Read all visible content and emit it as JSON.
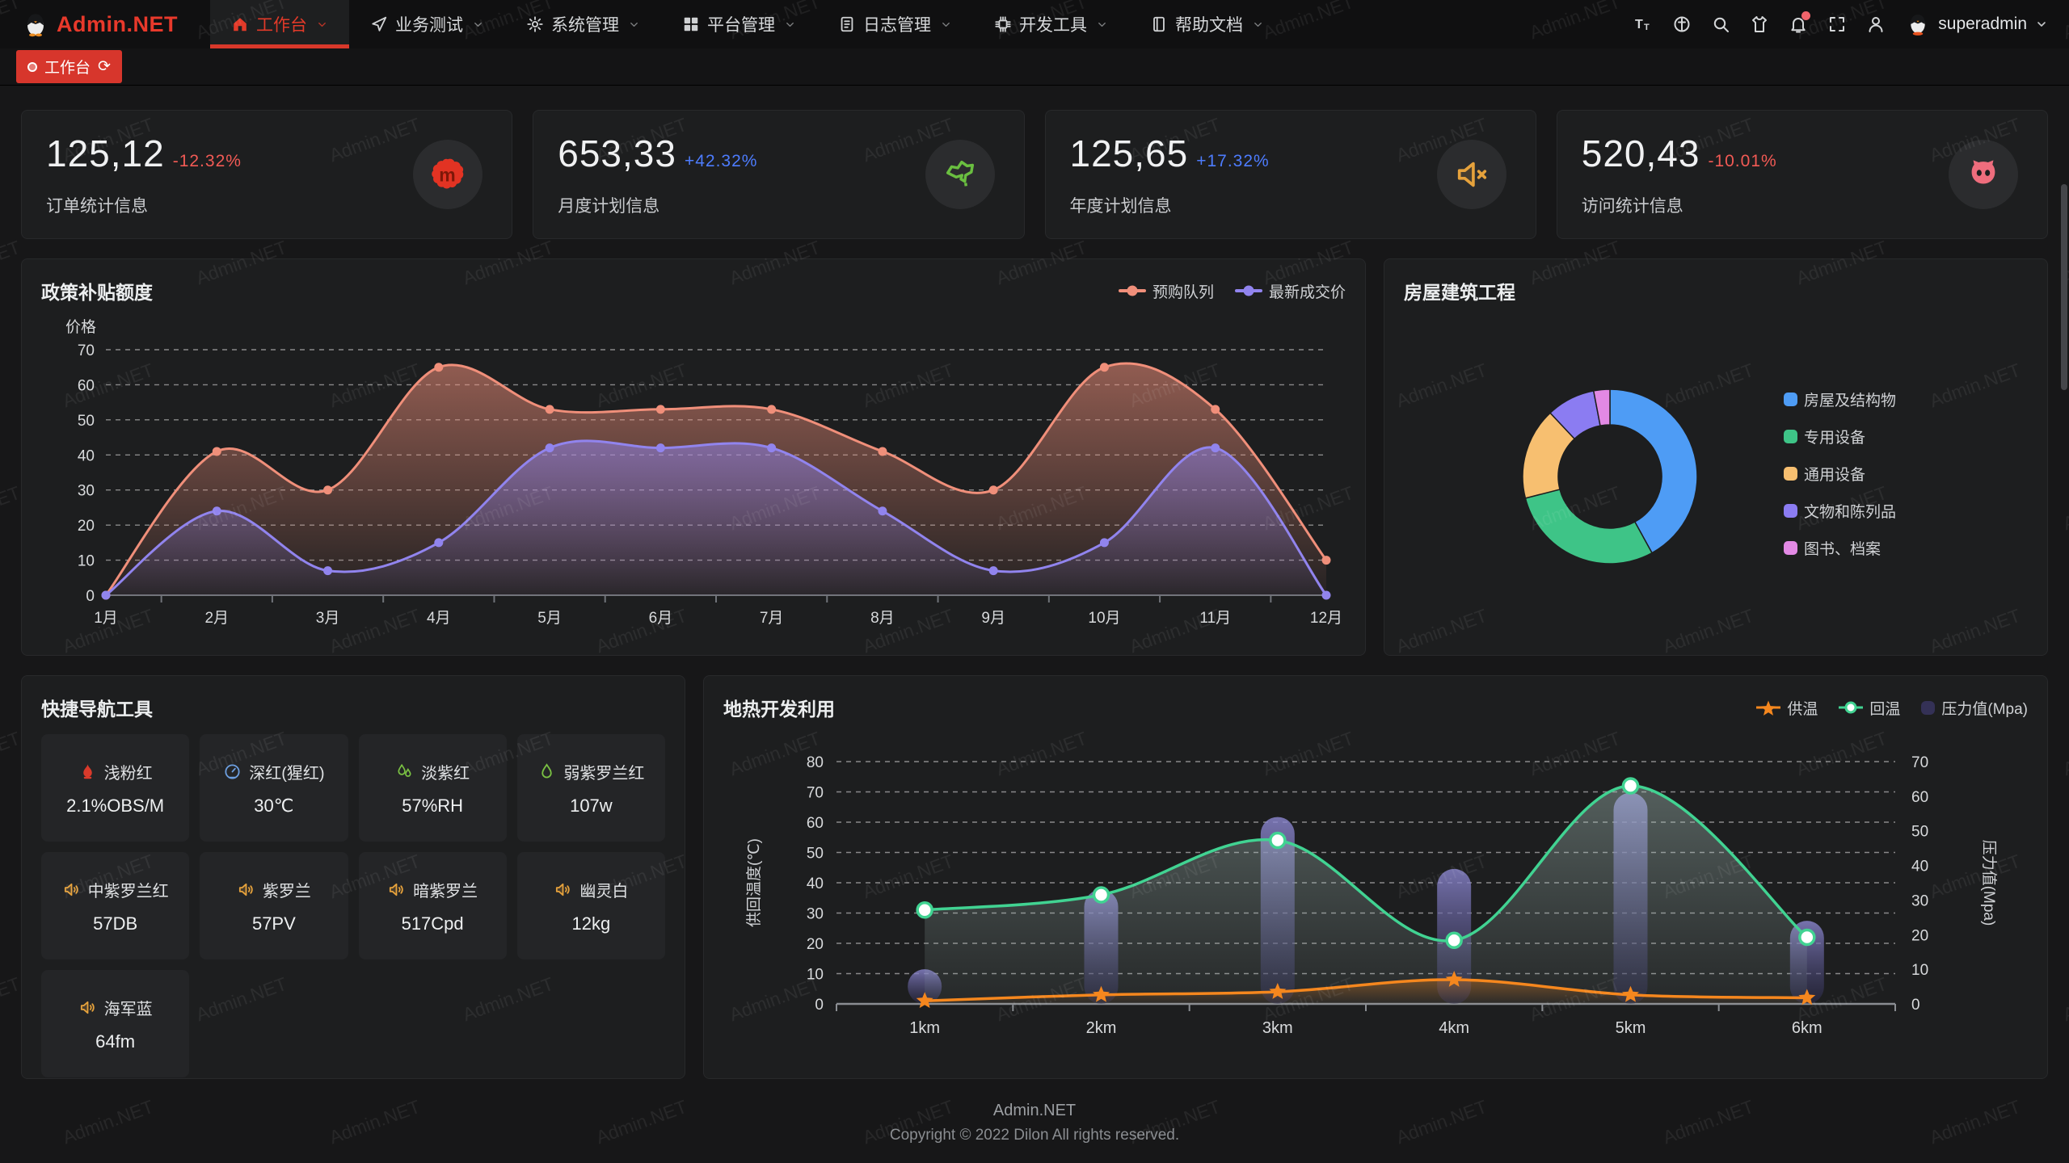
{
  "brand": {
    "name": "Admin.NET"
  },
  "watermark": {
    "text": "Admin.NET"
  },
  "navbar": {
    "menu": [
      {
        "label": "工作台",
        "icon": "home-icon",
        "active": true
      },
      {
        "label": "业务测试",
        "icon": "send-icon",
        "active": false
      },
      {
        "label": "系统管理",
        "icon": "gear-icon",
        "active": false
      },
      {
        "label": "平台管理",
        "icon": "grid-icon",
        "active": false
      },
      {
        "label": "日志管理",
        "icon": "file-icon",
        "active": false
      },
      {
        "label": "开发工具",
        "icon": "chip-icon",
        "active": false
      },
      {
        "label": "帮助文档",
        "icon": "book-icon",
        "active": false
      }
    ],
    "tools": [
      {
        "name": "font-size-button",
        "icon": "font-size-icon"
      },
      {
        "name": "language-button",
        "icon": "language-icon"
      },
      {
        "name": "search-button",
        "icon": "search-icon"
      },
      {
        "name": "theme-button",
        "icon": "theme-icon"
      },
      {
        "name": "notification-button",
        "icon": "notification-icon",
        "badge": true
      },
      {
        "name": "fullscreen-button",
        "icon": "fullscreen-icon"
      },
      {
        "name": "profile-button",
        "icon": "user-icon"
      }
    ],
    "user": {
      "name": "superadmin"
    }
  },
  "tabbar": {
    "active_tab": "工作台"
  },
  "stat_cards": [
    {
      "value": "125,12",
      "delta": "-12.32%",
      "delta_color": "#f25a55",
      "label": "订单统计信息",
      "icon": "meetup-splat-icon",
      "icon_color": "#e23323"
    },
    {
      "value": "653,33",
      "delta": "+42.32%",
      "delta_color": "#4d7cfe",
      "label": "月度计划信息",
      "icon": "china-map-icon",
      "icon_color": "#6abf40"
    },
    {
      "value": "125,65",
      "delta": "+17.32%",
      "delta_color": "#4d7cfe",
      "label": "年度计划信息",
      "icon": "speaker-mute-icon",
      "icon_color": "#e6a23c"
    },
    {
      "value": "520,43",
      "delta": "-10.01%",
      "delta_color": "#f25a55",
      "label": "访问统计信息",
      "icon": "cat-icon",
      "icon_color": "#ee6d7d"
    }
  ],
  "chart_data": [
    {
      "type": "line",
      "title": "政策补贴额度",
      "ylabel": "价格",
      "ylim": [
        0,
        70
      ],
      "ytick": 10,
      "grid": "dashed",
      "legend_position": "top-right",
      "categories": [
        "1月",
        "2月",
        "3月",
        "4月",
        "5月",
        "6月",
        "7月",
        "8月",
        "9月",
        "10月",
        "11月",
        "12月"
      ],
      "series": [
        {
          "name": "预购队列",
          "color": "#f08f7a",
          "values": [
            0,
            41,
            30,
            65,
            53,
            53,
            53,
            41,
            30,
            65,
            53,
            10
          ]
        },
        {
          "name": "最新成交价",
          "color": "#9184ee",
          "values": [
            0,
            24,
            7,
            15,
            42,
            42,
            42,
            24,
            7,
            15,
            42,
            0
          ]
        }
      ]
    },
    {
      "type": "pie",
      "title": "房屋建筑工程",
      "donut": true,
      "legend_position": "right",
      "labels": [
        "房屋及结构物",
        "专用设备",
        "通用设备",
        "文物和陈列品",
        "图书、档案"
      ],
      "values": [
        42,
        29,
        17,
        9,
        3
      ],
      "colors": [
        "#4e9cf5",
        "#3ec487",
        "#f7bf70",
        "#8b7cf2",
        "#e289e4"
      ]
    },
    {
      "type": "mixed",
      "title": "地热开发利用",
      "categories": [
        "1km",
        "2km",
        "3km",
        "4km",
        "5km",
        "6km"
      ],
      "left_axis": {
        "label": "供回温度(℃)",
        "lim": [
          0,
          80
        ],
        "tick": 10
      },
      "right_axis": {
        "label": "压力值(Mpa)",
        "lim": [
          0,
          70
        ],
        "tick": 10
      },
      "grid": "dashed",
      "legend_position": "top-right",
      "series": [
        {
          "name": "供温",
          "type": "line",
          "axis": "left",
          "color": "#f5871e",
          "marker": "star",
          "values": [
            1,
            3,
            4,
            8,
            3,
            2
          ]
        },
        {
          "name": "回温",
          "type": "line",
          "axis": "left",
          "color": "#41d392",
          "marker": "circle",
          "values": [
            31,
            36,
            54,
            21,
            72,
            22
          ]
        },
        {
          "name": "压力值(Mpa)",
          "type": "bar",
          "axis": "right",
          "color": "#8a85cf",
          "values": [
            10,
            33,
            54,
            39,
            61,
            24
          ]
        }
      ]
    }
  ],
  "quick_nav": {
    "title": "快捷导航工具",
    "items": [
      {
        "name": "浅粉红",
        "value": "2.1%OBS/M",
        "icon": "flame-icon",
        "color": "#d93a2b"
      },
      {
        "name": "深红(猩红)",
        "value": "30℃",
        "icon": "thermometer-icon",
        "color": "#6d9fe0"
      },
      {
        "name": "淡紫红",
        "value": "57%RH",
        "icon": "drops-icon",
        "color": "#7ac143"
      },
      {
        "name": "弱紫罗兰红",
        "value": "107w",
        "icon": "drop-icon",
        "color": "#7ac143"
      },
      {
        "name": "中紫罗兰红",
        "value": "57DB",
        "icon": "speaker-icon",
        "color": "#e6a23c"
      },
      {
        "name": "紫罗兰",
        "value": "57PV",
        "icon": "speaker-icon",
        "color": "#e6a23c"
      },
      {
        "name": "暗紫罗兰",
        "value": "517Cpd",
        "icon": "speaker-icon",
        "color": "#e6a23c"
      },
      {
        "name": "幽灵白",
        "value": "12kg",
        "icon": "speaker-icon",
        "color": "#e6a23c"
      },
      {
        "name": "海军蓝",
        "value": "64fm",
        "icon": "speaker-icon",
        "color": "#e6a23c"
      }
    ]
  },
  "footer": {
    "brand": "Admin.NET",
    "copyright": "Copyright © 2022 Dilon All rights reserved."
  }
}
